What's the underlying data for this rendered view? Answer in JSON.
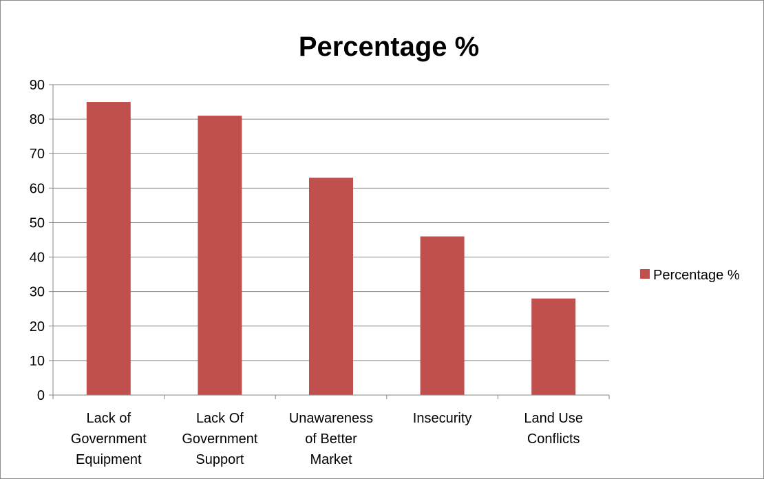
{
  "chart_data": {
    "type": "bar",
    "title": "Percentage %",
    "xlabel": "",
    "ylabel": "",
    "categories": [
      [
        "Lack of",
        "Government",
        "Equipment"
      ],
      [
        "Lack Of",
        "Government",
        "Support"
      ],
      [
        "Unawareness",
        "of Better",
        "Market"
      ],
      [
        "Insecurity"
      ],
      [
        "Land Use",
        "Conflicts"
      ]
    ],
    "series": [
      {
        "name": "Percentage %",
        "values": [
          85,
          81,
          63,
          46,
          28
        ]
      }
    ],
    "ylim": [
      0,
      90
    ],
    "yticks": [
      0,
      10,
      20,
      30,
      40,
      50,
      60,
      70,
      80,
      90
    ],
    "grid": true,
    "legend": "right",
    "colors": {
      "bar": "#c0504d",
      "grid": "#868686",
      "axis": "#868686"
    }
  }
}
